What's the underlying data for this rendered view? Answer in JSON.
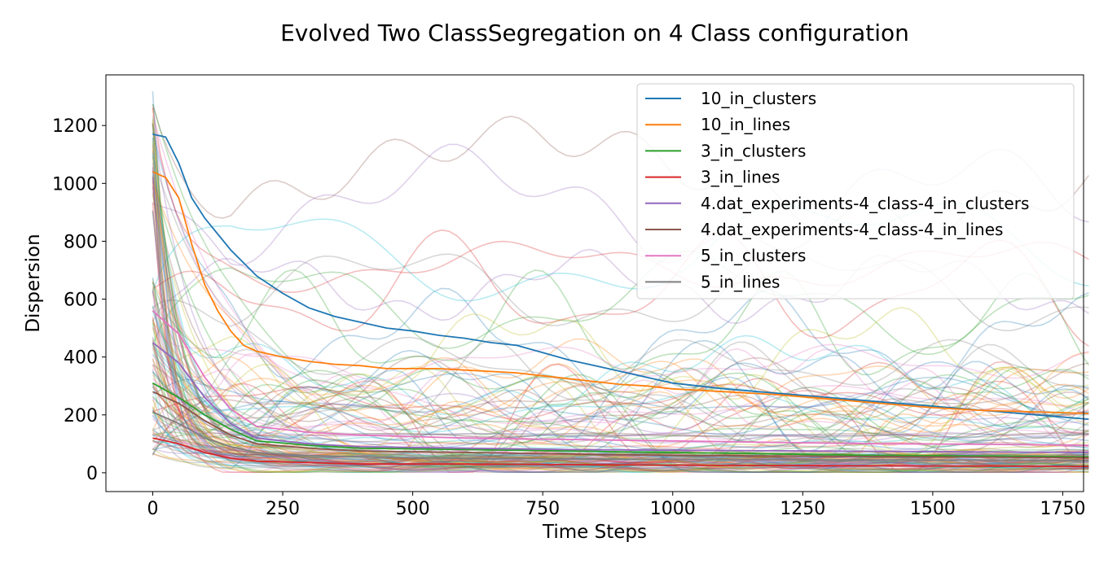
{
  "chart_data": {
    "type": "line",
    "title": "Evolved Two ClassSegregation on 4 Class configuration",
    "xlabel": "Time Steps",
    "ylabel": "Dispersion",
    "xlim": [
      -90,
      1790
    ],
    "ylim": [
      -65,
      1375
    ],
    "xticks": [
      0,
      250,
      500,
      750,
      1000,
      1250,
      1500,
      1750
    ],
    "yticks": [
      0,
      200,
      400,
      600,
      800,
      1000,
      1200
    ],
    "grid": false,
    "legend_position": "top-right",
    "background_runs_note_free": true,
    "series": [
      {
        "name": "10_in_clusters",
        "color": "#1f77b4",
        "x": [
          0,
          25,
          50,
          75,
          100,
          150,
          200,
          250,
          300,
          350,
          400,
          450,
          500,
          550,
          600,
          650,
          700,
          750,
          800,
          850,
          900,
          950,
          1000,
          1100,
          1200,
          1300,
          1400,
          1500,
          1600,
          1700,
          1800
        ],
        "y": [
          1170,
          1160,
          1070,
          950,
          880,
          770,
          680,
          620,
          570,
          540,
          520,
          500,
          490,
          475,
          465,
          450,
          440,
          415,
          390,
          370,
          350,
          330,
          310,
          290,
          275,
          260,
          245,
          230,
          215,
          200,
          185
        ]
      },
      {
        "name": "10_in_lines",
        "color": "#ff7f0e",
        "x": [
          0,
          25,
          50,
          75,
          100,
          125,
          150,
          175,
          200,
          250,
          300,
          350,
          400,
          450,
          500,
          550,
          600,
          650,
          700,
          750,
          800,
          850,
          900,
          950,
          1000,
          1100,
          1200,
          1300,
          1400,
          1500,
          1600,
          1700,
          1800
        ],
        "y": [
          1040,
          1020,
          950,
          790,
          650,
          560,
          490,
          440,
          420,
          400,
          385,
          375,
          370,
          360,
          360,
          360,
          355,
          350,
          345,
          335,
          325,
          315,
          305,
          300,
          290,
          280,
          270,
          255,
          240,
          225,
          215,
          210,
          205
        ]
      },
      {
        "name": "3_in_clusters",
        "color": "#2ca02c",
        "x": [
          0,
          50,
          100,
          150,
          200,
          300,
          400,
          600,
          800,
          1000,
          1200,
          1400,
          1600,
          1800
        ],
        "y": [
          310,
          260,
          200,
          150,
          110,
          95,
          85,
          80,
          75,
          70,
          65,
          60,
          58,
          55
        ]
      },
      {
        "name": "3_in_lines",
        "color": "#d62728",
        "x": [
          0,
          50,
          100,
          150,
          200,
          300,
          400,
          600,
          800,
          1000,
          1200,
          1400,
          1600,
          1800
        ],
        "y": [
          120,
          100,
          70,
          50,
          40,
          35,
          30,
          30,
          28,
          26,
          25,
          24,
          23,
          22
        ]
      },
      {
        "name": "4.dat_experiments-4_class-4_in_clusters",
        "color": "#9467bd",
        "x": [
          0,
          50,
          100,
          150,
          200,
          300,
          400,
          600,
          800,
          1000,
          1200,
          1400,
          1600,
          1800
        ],
        "y": [
          450,
          380,
          260,
          170,
          120,
          100,
          90,
          85,
          80,
          78,
          76,
          74,
          72,
          70
        ]
      },
      {
        "name": "4.dat_experiments-4_class-4_in_lines",
        "color": "#8c564b",
        "x": [
          0,
          50,
          100,
          150,
          200,
          300,
          400,
          600,
          800,
          1000,
          1200,
          1400,
          1600,
          1800
        ],
        "y": [
          280,
          240,
          180,
          130,
          100,
          85,
          75,
          70,
          65,
          60,
          58,
          56,
          54,
          52
        ]
      },
      {
        "name": "5_in_clusters",
        "color": "#e377c2",
        "x": [
          0,
          50,
          100,
          150,
          200,
          300,
          400,
          600,
          800,
          1000,
          1200,
          1400,
          1600,
          1800
        ],
        "y": [
          560,
          480,
          330,
          220,
          160,
          140,
          130,
          120,
          115,
          110,
          105,
          100,
          98,
          95
        ]
      },
      {
        "name": "5_in_lines",
        "color": "#7f7f7f",
        "x": [
          0,
          50,
          100,
          150,
          200,
          300,
          400,
          600,
          800,
          1000,
          1200,
          1400,
          1600,
          1800
        ],
        "y": [
          210,
          170,
          120,
          90,
          70,
          60,
          55,
          50,
          48,
          46,
          45,
          44,
          43,
          42
        ]
      }
    ]
  }
}
